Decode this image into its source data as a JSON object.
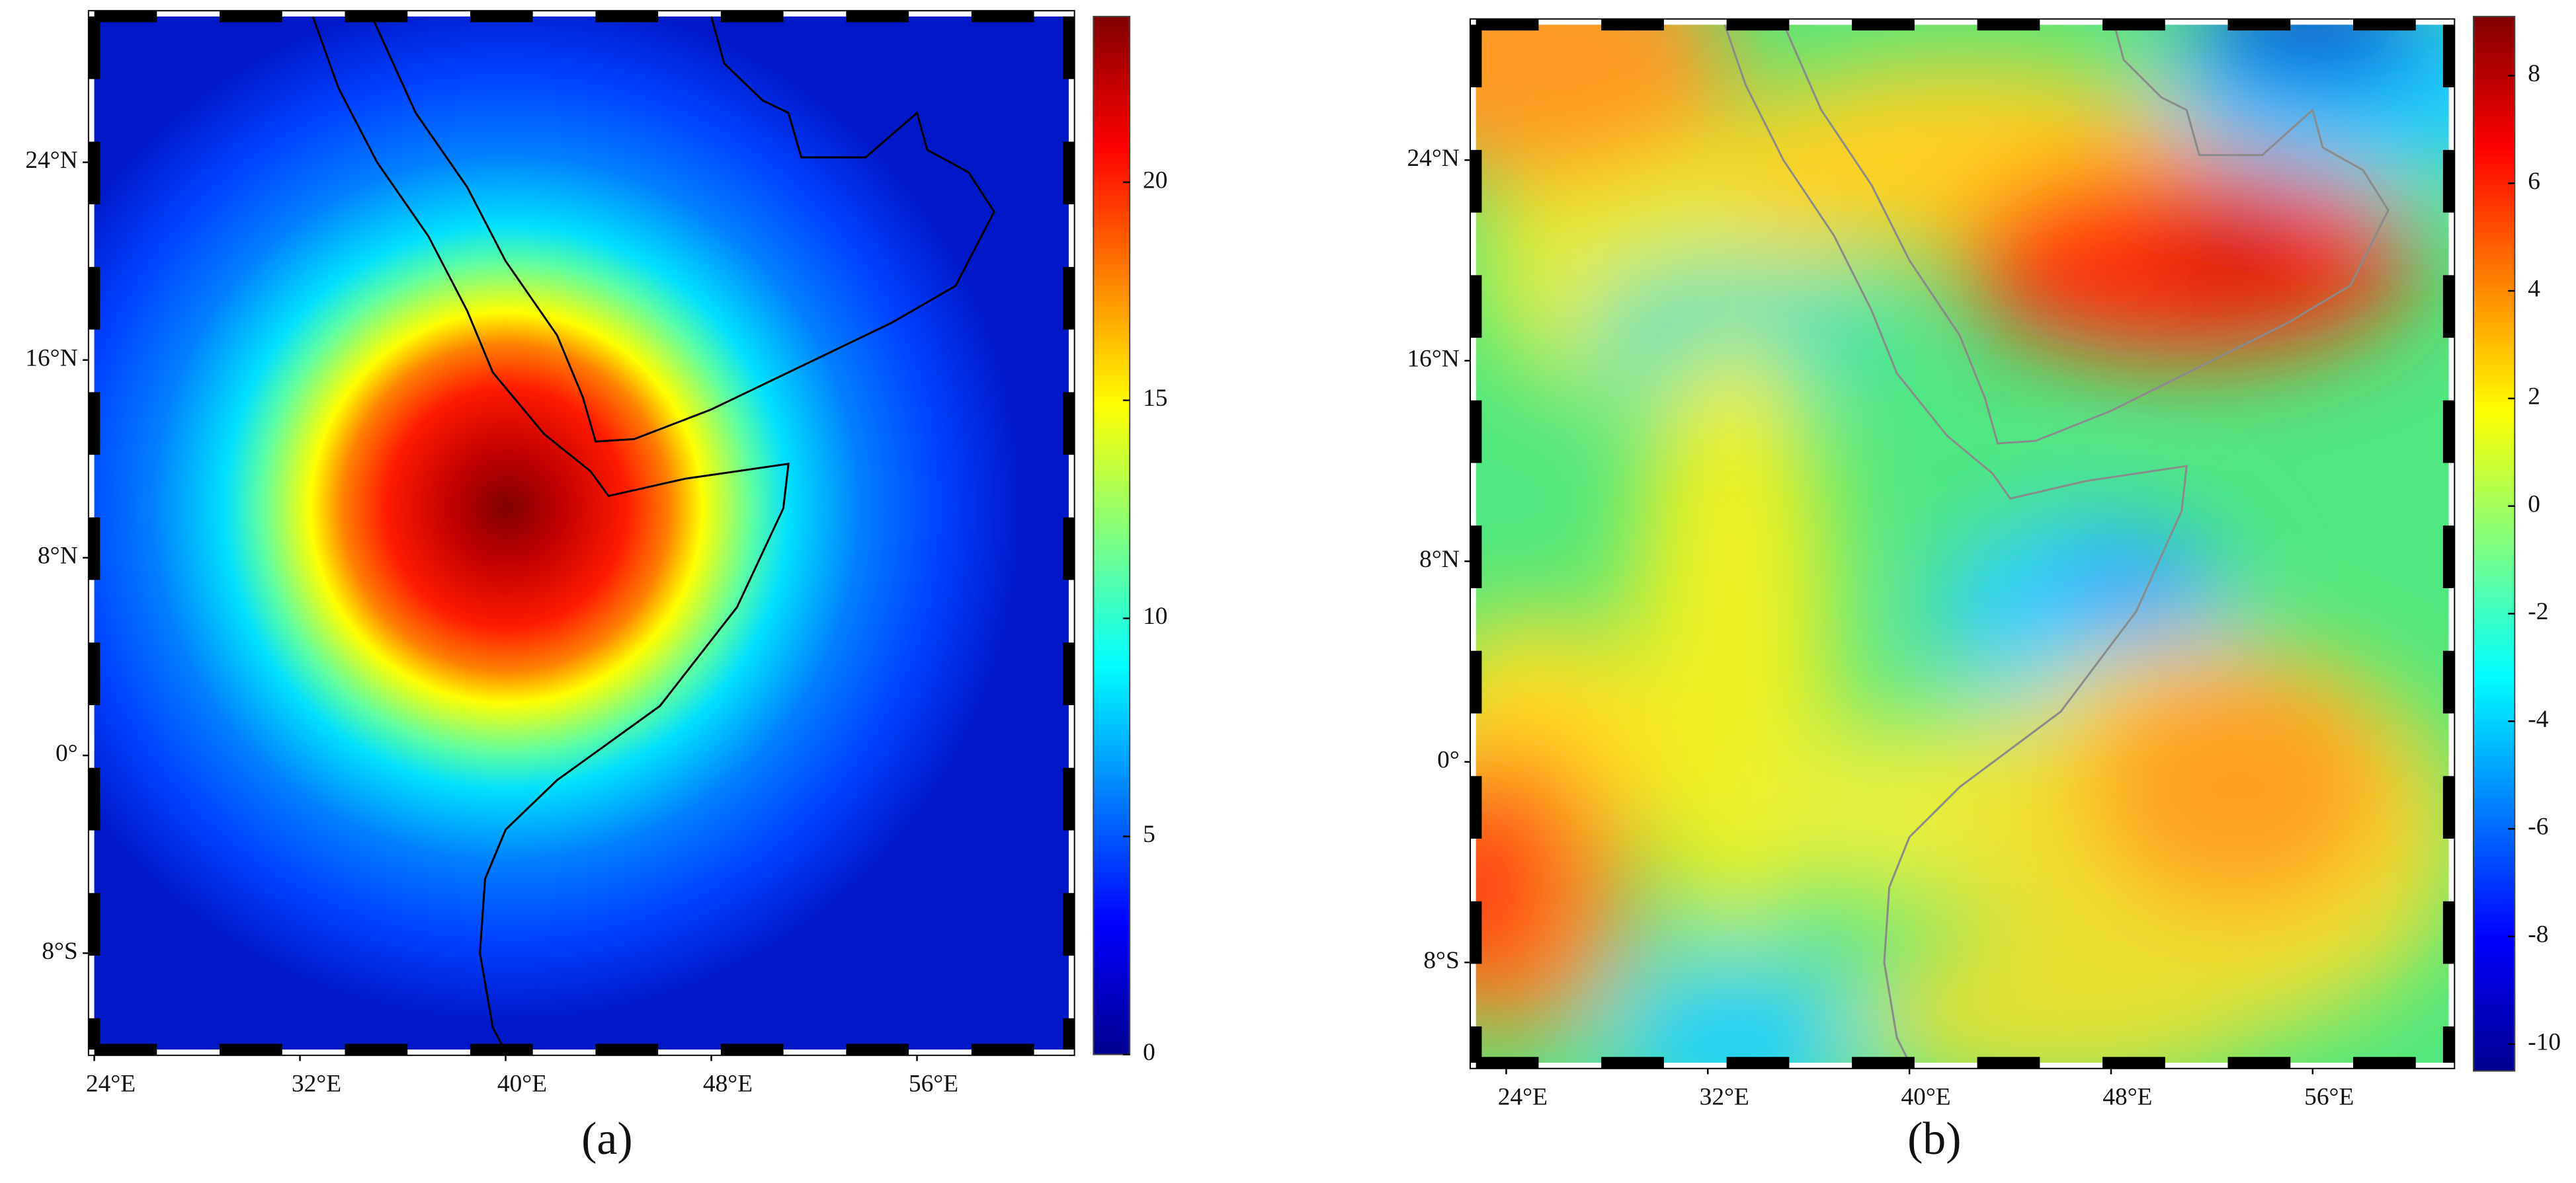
{
  "panels": [
    {
      "caption": "(a)",
      "xlim": [
        24,
        61.9
      ],
      "ylim": [
        -11.9,
        29.9
      ],
      "xticks": [
        {
          "value": 24,
          "label": "24°E"
        },
        {
          "value": 32,
          "label": "32°E"
        },
        {
          "value": 40,
          "label": "40°E"
        },
        {
          "value": 48,
          "label": "48°E"
        },
        {
          "value": 56,
          "label": "56°E"
        }
      ],
      "yticks": [
        {
          "value": 24,
          "label": "24°N"
        },
        {
          "value": 16,
          "label": "16°N"
        },
        {
          "value": 8,
          "label": "8°N"
        },
        {
          "value": 0,
          "label": "0°"
        },
        {
          "value": -8,
          "label": "8°S"
        }
      ],
      "colorbar": {
        "lim": [
          0,
          23.8
        ],
        "ticks": [
          0,
          5,
          10,
          15,
          20
        ]
      }
    },
    {
      "caption": "(b)",
      "xlim": [
        22.8,
        61.4
      ],
      "ylim": [
        -12.0,
        29.4
      ],
      "xticks": [
        {
          "value": 24,
          "label": "24°E"
        },
        {
          "value": 32,
          "label": "32°E"
        },
        {
          "value": 40,
          "label": "40°E"
        },
        {
          "value": 48,
          "label": "48°E"
        },
        {
          "value": 56,
          "label": "56°E"
        }
      ],
      "yticks": [
        {
          "value": 24,
          "label": "24°N"
        },
        {
          "value": 16,
          "label": "16°N"
        },
        {
          "value": 8,
          "label": "8°N"
        },
        {
          "value": 0,
          "label": "0°"
        },
        {
          "value": -8,
          "label": "8°S"
        }
      ],
      "colorbar": {
        "lim": [
          -10.5,
          9.1
        ],
        "ticks": [
          8,
          6,
          4,
          2,
          0,
          -2,
          -4,
          -6,
          -8,
          -10
        ]
      }
    }
  ]
}
